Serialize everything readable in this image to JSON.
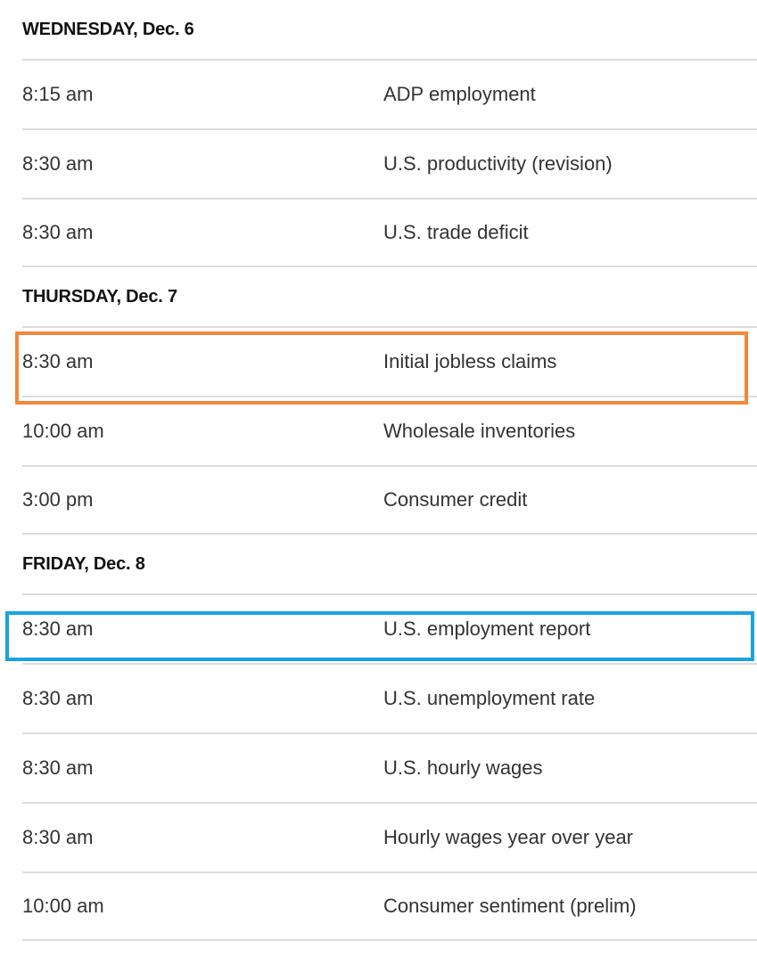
{
  "days": [
    {
      "heading": "WEDNESDAY, Dec. 6",
      "events": [
        {
          "time": "8:15 am",
          "name": "ADP employment"
        },
        {
          "time": "8:30 am",
          "name": "U.S. productivity (revision)"
        },
        {
          "time": "8:30 am",
          "name": "U.S. trade deficit"
        }
      ]
    },
    {
      "heading": "THURSDAY, Dec. 7",
      "events": [
        {
          "time": "8:30 am",
          "name": "Initial jobless claims"
        },
        {
          "time": "10:00 am",
          "name": "Wholesale inventories"
        },
        {
          "time": "3:00 pm",
          "name": "Consumer credit"
        }
      ]
    },
    {
      "heading": "FRIDAY, Dec. 8",
      "events": [
        {
          "time": "8:30 am",
          "name": "U.S. employment report"
        },
        {
          "time": "8:30 am",
          "name": "U.S. unemployment rate"
        },
        {
          "time": "8:30 am",
          "name": "U.S. hourly wages"
        },
        {
          "time": "8:30 am",
          "name": "Hourly wages year over year"
        },
        {
          "time": "10:00 am",
          "name": "Consumer sentiment (prelim)"
        }
      ]
    }
  ],
  "highlights": {
    "orange": {
      "color": "#f0883a",
      "target": "Initial jobless claims"
    },
    "blue": {
      "color": "#1aa3df",
      "target": "U.S. employment report"
    }
  }
}
